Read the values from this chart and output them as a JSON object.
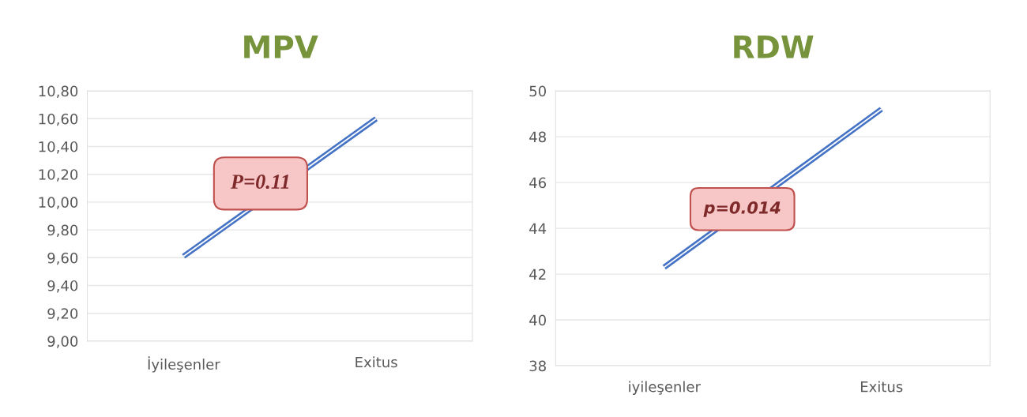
{
  "chart_data": [
    {
      "type": "line",
      "title": "MPV",
      "categories": [
        "İyileşenler",
        "Exitus"
      ],
      "series": [
        {
          "color": "#4472c4",
          "values": [
            9.61,
            10.6
          ]
        }
      ],
      "ylim": [
        9.0,
        10.8
      ],
      "yticks": [
        {
          "value": 9.0,
          "label": "9,00"
        },
        {
          "value": 9.2,
          "label": "9,20"
        },
        {
          "value": 9.4,
          "label": "9,40"
        },
        {
          "value": 9.6,
          "label": "9,60"
        },
        {
          "value": 9.8,
          "label": "9,80"
        },
        {
          "value": 10.0,
          "label": "10,00"
        },
        {
          "value": 10.2,
          "label": "10,20"
        },
        {
          "value": 10.4,
          "label": "10,40"
        },
        {
          "value": 10.6,
          "label": "10,60"
        },
        {
          "value": 10.8,
          "label": "10,80"
        }
      ],
      "grid": "y",
      "annotations": [
        "P=0.11"
      ]
    },
    {
      "type": "line",
      "title": "RDW",
      "categories": [
        "iyileşenler",
        "Exitus"
      ],
      "series": [
        {
          "color": "#4472c4",
          "values": [
            42.3,
            49.2
          ]
        }
      ],
      "ylim": [
        38,
        50
      ],
      "yticks": [
        38,
        40,
        42,
        44,
        46,
        48,
        50
      ],
      "grid": "y",
      "annotations": [
        "p=0.014"
      ]
    }
  ]
}
